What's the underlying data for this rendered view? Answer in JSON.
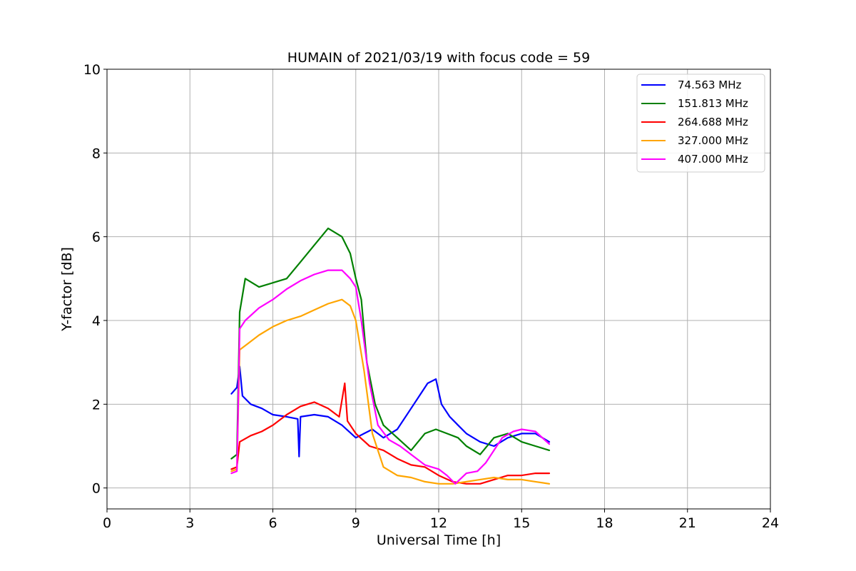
{
  "chart_data": {
    "type": "line",
    "title": "HUMAIN of 2021/03/19 with focus code = 59",
    "xlabel": "Universal Time [h]",
    "ylabel": "Y-factor [dB]",
    "xlim": [
      0,
      24
    ],
    "ylim": [
      -0.5,
      10
    ],
    "xticks": [
      0,
      3,
      6,
      9,
      12,
      15,
      18,
      21,
      24
    ],
    "yticks": [
      0,
      2,
      4,
      6,
      8,
      10
    ],
    "grid": true,
    "legend_position": "top-right",
    "series": [
      {
        "name": " 74.563 MHz",
        "color": "#0000ff",
        "points": [
          [
            4.5,
            2.25
          ],
          [
            4.7,
            2.4
          ],
          [
            4.8,
            2.9
          ],
          [
            4.9,
            2.2
          ],
          [
            5.2,
            2.0
          ],
          [
            5.6,
            1.9
          ],
          [
            6.0,
            1.75
          ],
          [
            6.5,
            1.7
          ],
          [
            6.9,
            1.65
          ],
          [
            6.95,
            0.75
          ],
          [
            7.0,
            1.7
          ],
          [
            7.5,
            1.75
          ],
          [
            8.0,
            1.7
          ],
          [
            8.5,
            1.5
          ],
          [
            9.0,
            1.2
          ],
          [
            9.3,
            1.3
          ],
          [
            9.6,
            1.4
          ],
          [
            10.0,
            1.2
          ],
          [
            10.5,
            1.4
          ],
          [
            11.0,
            1.9
          ],
          [
            11.3,
            2.2
          ],
          [
            11.6,
            2.5
          ],
          [
            11.9,
            2.6
          ],
          [
            12.1,
            2.0
          ],
          [
            12.4,
            1.7
          ],
          [
            12.7,
            1.5
          ],
          [
            13.0,
            1.3
          ],
          [
            13.5,
            1.1
          ],
          [
            14.0,
            1.0
          ],
          [
            14.5,
            1.2
          ],
          [
            15.0,
            1.3
          ],
          [
            15.5,
            1.3
          ],
          [
            16.0,
            1.1
          ]
        ]
      },
      {
        "name": "151.813 MHz",
        "color": "#008000",
        "points": [
          [
            4.5,
            0.7
          ],
          [
            4.7,
            0.8
          ],
          [
            4.8,
            4.2
          ],
          [
            5.0,
            5.0
          ],
          [
            5.5,
            4.8
          ],
          [
            6.0,
            4.9
          ],
          [
            6.5,
            5.0
          ],
          [
            7.0,
            5.4
          ],
          [
            7.5,
            5.8
          ],
          [
            8.0,
            6.2
          ],
          [
            8.5,
            6.0
          ],
          [
            8.8,
            5.6
          ],
          [
            9.0,
            5.0
          ],
          [
            9.2,
            4.5
          ],
          [
            9.4,
            3.0
          ],
          [
            9.7,
            2.0
          ],
          [
            10.0,
            1.5
          ],
          [
            10.5,
            1.2
          ],
          [
            11.0,
            0.9
          ],
          [
            11.5,
            1.3
          ],
          [
            11.9,
            1.4
          ],
          [
            12.3,
            1.3
          ],
          [
            12.7,
            1.2
          ],
          [
            13.0,
            1.0
          ],
          [
            13.5,
            0.8
          ],
          [
            14.0,
            1.2
          ],
          [
            14.5,
            1.3
          ],
          [
            15.0,
            1.1
          ],
          [
            15.5,
            1.0
          ],
          [
            16.0,
            0.9
          ]
        ]
      },
      {
        "name": "264.688 MHz",
        "color": "#ff0000",
        "points": [
          [
            4.5,
            0.45
          ],
          [
            4.7,
            0.5
          ],
          [
            4.8,
            1.1
          ],
          [
            5.2,
            1.25
          ],
          [
            5.6,
            1.35
          ],
          [
            6.0,
            1.5
          ],
          [
            6.5,
            1.75
          ],
          [
            7.0,
            1.95
          ],
          [
            7.5,
            2.05
          ],
          [
            8.0,
            1.9
          ],
          [
            8.4,
            1.7
          ],
          [
            8.6,
            2.5
          ],
          [
            8.7,
            1.6
          ],
          [
            9.0,
            1.3
          ],
          [
            9.5,
            1.0
          ],
          [
            10.0,
            0.9
          ],
          [
            10.5,
            0.7
          ],
          [
            11.0,
            0.55
          ],
          [
            11.5,
            0.5
          ],
          [
            12.0,
            0.3
          ],
          [
            12.5,
            0.15
          ],
          [
            13.0,
            0.1
          ],
          [
            13.5,
            0.1
          ],
          [
            14.0,
            0.2
          ],
          [
            14.5,
            0.3
          ],
          [
            15.0,
            0.3
          ],
          [
            15.5,
            0.35
          ],
          [
            16.0,
            0.35
          ]
        ]
      },
      {
        "name": "327.000 MHz",
        "color": "#ffa500",
        "points": [
          [
            4.5,
            0.4
          ],
          [
            4.7,
            0.45
          ],
          [
            4.8,
            3.3
          ],
          [
            5.0,
            3.4
          ],
          [
            5.5,
            3.65
          ],
          [
            6.0,
            3.85
          ],
          [
            6.5,
            4.0
          ],
          [
            7.0,
            4.1
          ],
          [
            7.5,
            4.25
          ],
          [
            8.0,
            4.4
          ],
          [
            8.5,
            4.5
          ],
          [
            8.8,
            4.35
          ],
          [
            9.0,
            4.0
          ],
          [
            9.3,
            2.8
          ],
          [
            9.6,
            1.3
          ],
          [
            10.0,
            0.5
          ],
          [
            10.5,
            0.3
          ],
          [
            11.0,
            0.25
          ],
          [
            11.5,
            0.15
          ],
          [
            12.0,
            0.1
          ],
          [
            12.5,
            0.1
          ],
          [
            13.0,
            0.15
          ],
          [
            13.5,
            0.2
          ],
          [
            14.0,
            0.25
          ],
          [
            14.5,
            0.2
          ],
          [
            15.0,
            0.2
          ],
          [
            15.5,
            0.15
          ],
          [
            16.0,
            0.1
          ]
        ]
      },
      {
        "name": "407.000 MHz",
        "color": "#ff00ff",
        "points": [
          [
            4.5,
            0.35
          ],
          [
            4.7,
            0.4
          ],
          [
            4.8,
            3.8
          ],
          [
            5.0,
            4.0
          ],
          [
            5.5,
            4.3
          ],
          [
            6.0,
            4.5
          ],
          [
            6.5,
            4.75
          ],
          [
            7.0,
            4.95
          ],
          [
            7.5,
            5.1
          ],
          [
            8.0,
            5.2
          ],
          [
            8.5,
            5.2
          ],
          [
            8.8,
            5.0
          ],
          [
            9.0,
            4.8
          ],
          [
            9.2,
            4.0
          ],
          [
            9.5,
            2.5
          ],
          [
            9.8,
            1.5
          ],
          [
            10.2,
            1.15
          ],
          [
            10.6,
            1.0
          ],
          [
            11.0,
            0.8
          ],
          [
            11.5,
            0.55
          ],
          [
            12.0,
            0.45
          ],
          [
            12.3,
            0.3
          ],
          [
            12.6,
            0.1
          ],
          [
            13.0,
            0.35
          ],
          [
            13.4,
            0.4
          ],
          [
            13.7,
            0.6
          ],
          [
            14.0,
            0.9
          ],
          [
            14.3,
            1.2
          ],
          [
            14.7,
            1.35
          ],
          [
            15.0,
            1.4
          ],
          [
            15.5,
            1.35
          ],
          [
            16.0,
            1.05
          ]
        ]
      }
    ]
  }
}
